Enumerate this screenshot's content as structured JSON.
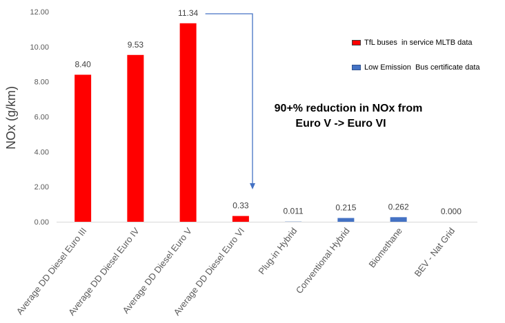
{
  "chart_data": {
    "type": "bar",
    "ylabel": "NOx (g/km)",
    "ylim": [
      0,
      12
    ],
    "ytick_labels": [
      "0.00",
      "2.00",
      "4.00",
      "6.00",
      "8.00",
      "10.00",
      "12.00"
    ],
    "ytick_values": [
      0,
      2,
      4,
      6,
      8,
      10,
      12
    ],
    "grid": false,
    "legend_position": "top-right",
    "categories": [
      "Average DD Diesel Euro III",
      "Average DD Diesel Euro IV",
      "Average DD Diesel Euro V",
      "Average DD Diesel Euro VI",
      "Plug-in Hybrid",
      "Conventional Hybrid",
      "Biomethane",
      "BEV - Nat Grid"
    ],
    "values": [
      8.4,
      9.53,
      11.34,
      0.33,
      0.011,
      0.215,
      0.262,
      0.0
    ],
    "data_labels": [
      "8.40",
      "9.53",
      "11.34",
      "0.33",
      "0.011",
      "0.215",
      "0.262",
      "0.000"
    ],
    "bar_series_index": [
      0,
      0,
      0,
      0,
      1,
      1,
      1,
      1
    ],
    "series": [
      {
        "name": "TfL buses  in service MLTB data",
        "color": "#ff0000"
      },
      {
        "name": "Low Emission  Bus certificate data",
        "color": "#4472c4"
      }
    ],
    "annotation": {
      "line1": "90+% reduction in NOx from",
      "line2": "Euro V -> Euro VI",
      "arrow_color": "#4472c4"
    }
  }
}
